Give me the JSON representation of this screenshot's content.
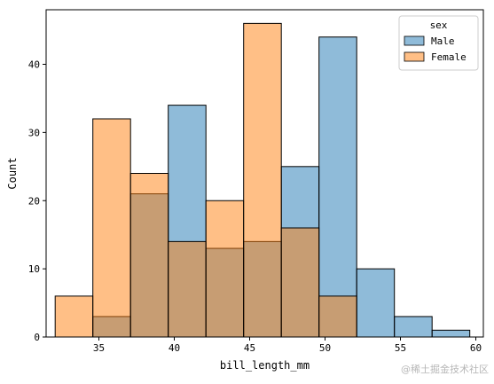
{
  "chart_data": {
    "type": "bar",
    "subtype": "histogram",
    "title": "",
    "xlabel": "bill_length_mm",
    "ylabel": "Count",
    "xlim": [
      31.5,
      60.5
    ],
    "ylim": [
      0,
      48
    ],
    "xticks": [
      35,
      40,
      45,
      50,
      55,
      60
    ],
    "yticks": [
      0,
      10,
      20,
      30,
      40
    ],
    "grid": false,
    "legend": {
      "title": "sex",
      "placement": "top-right"
    },
    "bin_edges": [
      32.1,
      34.6,
      37.1,
      39.6,
      42.1,
      44.6,
      47.1,
      49.6,
      52.1,
      54.6,
      57.1,
      59.6
    ],
    "series": [
      {
        "name": "Male",
        "color": "#1f77b4",
        "values": [
          0,
          3,
          21,
          34,
          13,
          14,
          25,
          44,
          10,
          3,
          1
        ]
      },
      {
        "name": "Female",
        "color": "#ff7f0e",
        "values": [
          6,
          32,
          24,
          14,
          20,
          46,
          16,
          6,
          0,
          0,
          0
        ]
      }
    ]
  },
  "watermark": "@稀土掘金技术社区"
}
